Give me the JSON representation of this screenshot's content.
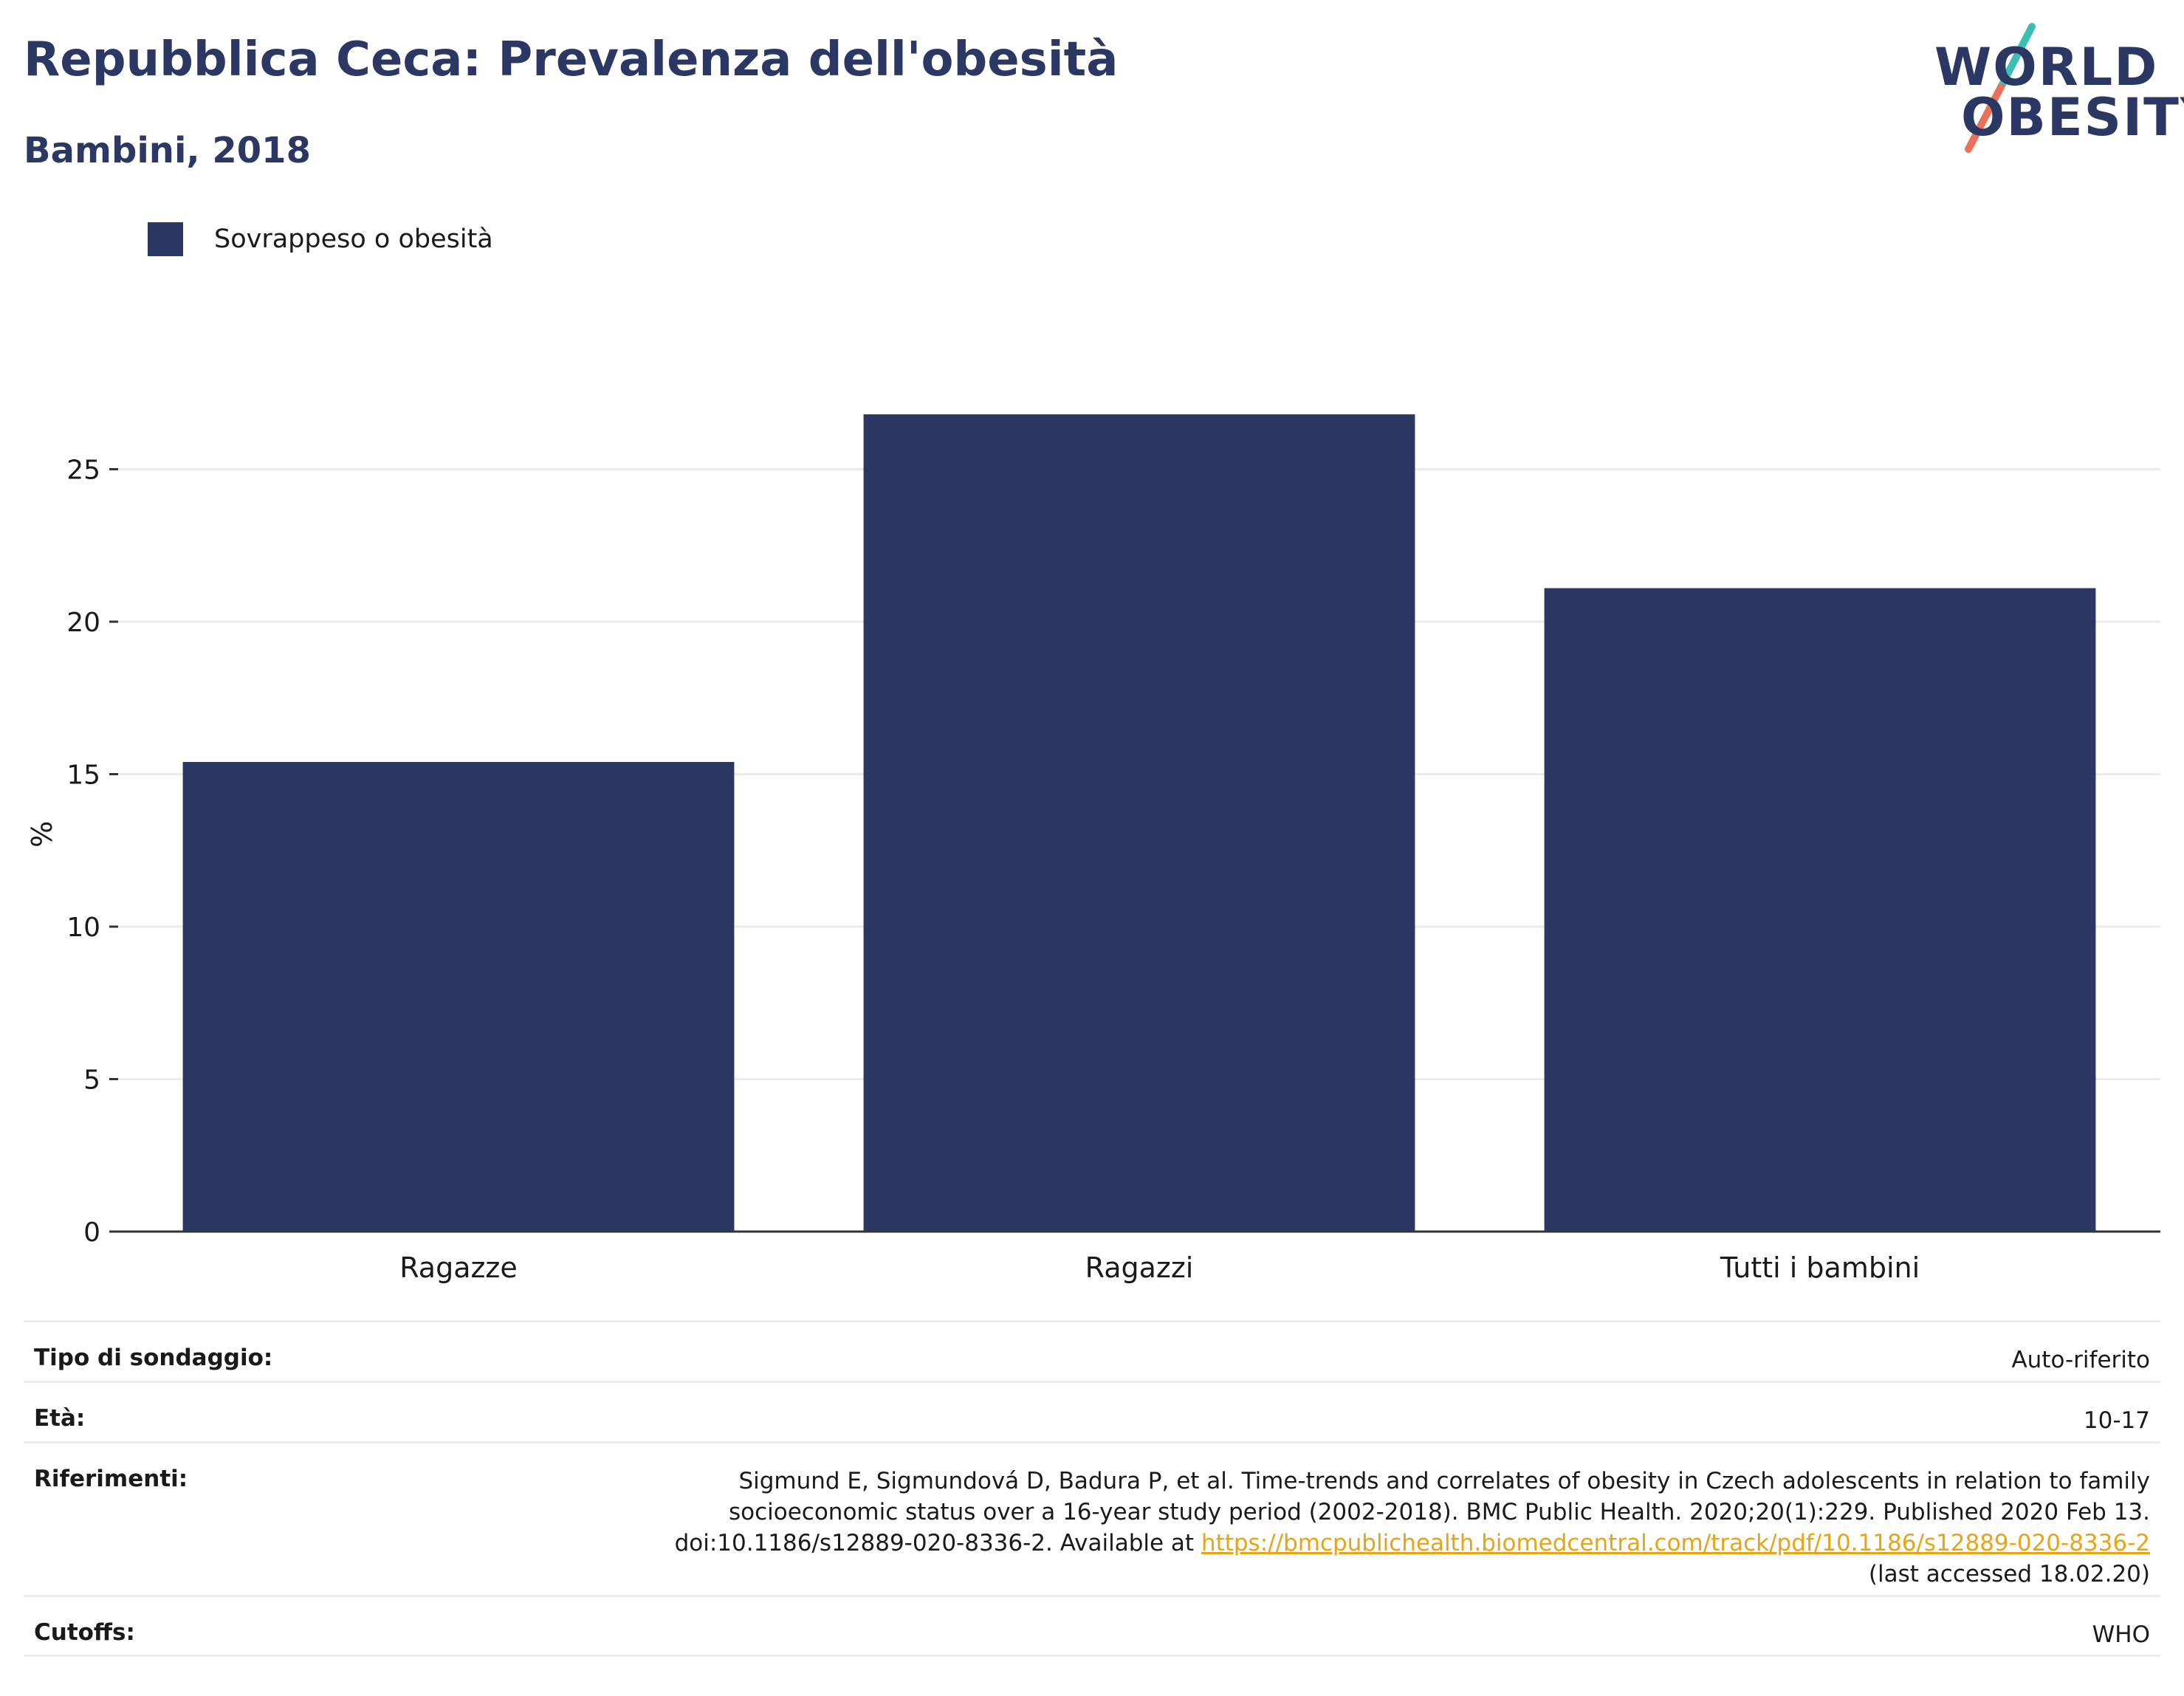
{
  "header": {
    "title": "Repubblica Ceca: Prevalenza dell'obesità",
    "subtitle": "Bambini, 2018"
  },
  "logo": {
    "line1": "WORLD",
    "line2": "OBESITY",
    "colors": {
      "text": "#2b3864",
      "slash_top": "#3bbfb4",
      "slash_bottom": "#e8735a"
    }
  },
  "legend": {
    "label": "Sovrappeso o obesità",
    "color": "#2b3864"
  },
  "chart_data": {
    "type": "bar",
    "categories": [
      "Ragazze",
      "Ragazzi",
      "Tutti i bambini"
    ],
    "series": [
      {
        "name": "Sovrappeso o obesità",
        "values": [
          15.4,
          26.8,
          21.1
        ],
        "color": "#2b3864"
      }
    ],
    "ylabel": "%",
    "yticks": [
      0,
      5,
      10,
      15,
      20,
      25
    ],
    "ylim": [
      0,
      28
    ],
    "grid": true,
    "legend_position": "top-left"
  },
  "meta": {
    "survey_type": {
      "label": "Tipo di sondaggio:",
      "value": "Auto-riferito"
    },
    "age": {
      "label": "Età:",
      "value": "10-17"
    },
    "references": {
      "label": "Riferimenti:",
      "line1": "Sigmund E, Sigmundová D, Badura P, et al. Time-trends and correlates of obesity in Czech adolescents in relation to family",
      "line2": "socioeconomic status over a 16-year study period (2002-2018). BMC Public Health. 2020;20(1):229. Published 2020 Feb 13.",
      "line3_prefix": "doi:10.1186/s12889-020-8336-2. Available at ",
      "link": "https://bmcpublichealth.biomedcentral.com/track/pdf/10.1186/s12889-020-8336-2",
      "line4": "(last accessed 18.02.20)"
    },
    "cutoffs": {
      "label": "Cutoffs:",
      "value": "WHO"
    }
  }
}
